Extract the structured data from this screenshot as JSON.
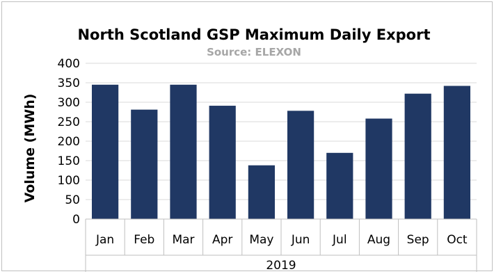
{
  "chart_data": {
    "type": "bar",
    "title": "North Scotland  GSP Maximum  Daily  Export",
    "subtitle": "Source: ELEXON",
    "ylabel": "Volume  (MWh)",
    "xlabel": "2019",
    "categories": [
      "Jan",
      "Feb",
      "Mar",
      "Apr",
      "May",
      "Jun",
      "Jul",
      "Aug",
      "Sep",
      "Oct"
    ],
    "values": [
      345,
      281,
      345,
      291,
      138,
      278,
      170,
      258,
      322,
      342
    ],
    "ylim": [
      0,
      400
    ],
    "yticks": [
      "0",
      "50",
      "100",
      "150",
      "200",
      "250",
      "300",
      "350",
      "400"
    ],
    "grid": true,
    "legend": "none",
    "bar_color": "#203864",
    "grid_color": "#d9d9d9"
  }
}
